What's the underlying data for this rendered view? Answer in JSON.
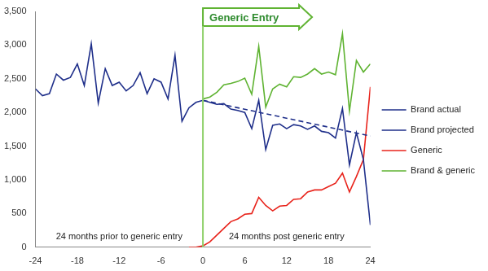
{
  "chart_data": {
    "type": "line",
    "x": [
      -24,
      -23,
      -22,
      -21,
      -20,
      -19,
      -18,
      -17,
      -16,
      -15,
      -14,
      -13,
      -12,
      -11,
      -10,
      -9,
      -8,
      -7,
      -6,
      -5,
      -4,
      -3,
      -2,
      -1,
      0,
      1,
      2,
      3,
      4,
      5,
      6,
      7,
      8,
      9,
      10,
      11,
      12,
      13,
      14,
      15,
      16,
      17,
      18,
      19,
      20,
      21,
      22,
      23,
      24
    ],
    "series": [
      {
        "name": "Brand actual",
        "color": "#1f2f8a",
        "line_style": "solid",
        "values": [
          2350,
          2250,
          2280,
          2570,
          2480,
          2520,
          2720,
          2400,
          3020,
          2140,
          2650,
          2400,
          2450,
          2320,
          2400,
          2590,
          2280,
          2500,
          2450,
          2200,
          2850,
          1870,
          2070,
          2150,
          2180,
          2150,
          2120,
          2130,
          2050,
          2030,
          2000,
          1760,
          2180,
          1450,
          1810,
          1830,
          1760,
          1820,
          1800,
          1750,
          1800,
          1720,
          1700,
          1620,
          2060,
          1220,
          1700,
          1300,
          330
        ]
      },
      {
        "name": "Brand projected",
        "color": "#1f2f8a",
        "line_style": "dashed",
        "values": [
          null,
          null,
          null,
          null,
          null,
          null,
          null,
          null,
          null,
          null,
          null,
          null,
          null,
          null,
          null,
          null,
          null,
          null,
          null,
          null,
          null,
          null,
          null,
          null,
          2180,
          null,
          null,
          null,
          null,
          null,
          null,
          null,
          null,
          null,
          null,
          null,
          null,
          null,
          null,
          null,
          null,
          null,
          null,
          null,
          null,
          null,
          null,
          null,
          1650
        ]
      },
      {
        "name": "Generic",
        "color": "#e8231b",
        "line_style": "solid",
        "values": [
          null,
          null,
          null,
          null,
          null,
          null,
          null,
          null,
          null,
          null,
          null,
          null,
          null,
          null,
          null,
          null,
          null,
          null,
          null,
          null,
          null,
          null,
          0,
          0,
          20,
          80,
          180,
          280,
          380,
          420,
          490,
          500,
          740,
          620,
          540,
          610,
          620,
          710,
          720,
          820,
          850,
          850,
          900,
          950,
          1100,
          820,
          1050,
          1300,
          2380
        ]
      },
      {
        "name": "Brand & generic",
        "color": "#5fb332",
        "line_style": "solid",
        "values": [
          null,
          null,
          null,
          null,
          null,
          null,
          null,
          null,
          null,
          null,
          null,
          null,
          null,
          null,
          null,
          null,
          null,
          null,
          null,
          null,
          null,
          null,
          null,
          null,
          2200,
          2230,
          2300,
          2410,
          2430,
          2460,
          2510,
          2270,
          2980,
          2080,
          2350,
          2420,
          2380,
          2530,
          2520,
          2570,
          2650,
          2570,
          2600,
          2560,
          3170,
          2020,
          2770,
          2600,
          2720
        ]
      }
    ],
    "xlim": [
      -24,
      24
    ],
    "xticks": [
      -24,
      -18,
      -12,
      -6,
      0,
      6,
      12,
      18,
      24
    ],
    "ylim": [
      0,
      3500
    ],
    "yticks": [
      0,
      500,
      {
        "value": 1000,
        "label": "1,000"
      },
      {
        "value": 1500,
        "label": "1,500"
      },
      {
        "value": 2000,
        "label": "2,000"
      },
      {
        "value": 2500,
        "label": "2,500"
      },
      {
        "value": 3000,
        "label": "3,000"
      },
      {
        "value": 3500,
        "label": "3,500"
      }
    ],
    "grid": false,
    "legend": "right",
    "annotations": [
      {
        "text": "Generic Entry",
        "x": 0
      },
      {
        "text": "24 months prior to generic entry"
      },
      {
        "text": "24 months post generic entry"
      }
    ]
  }
}
